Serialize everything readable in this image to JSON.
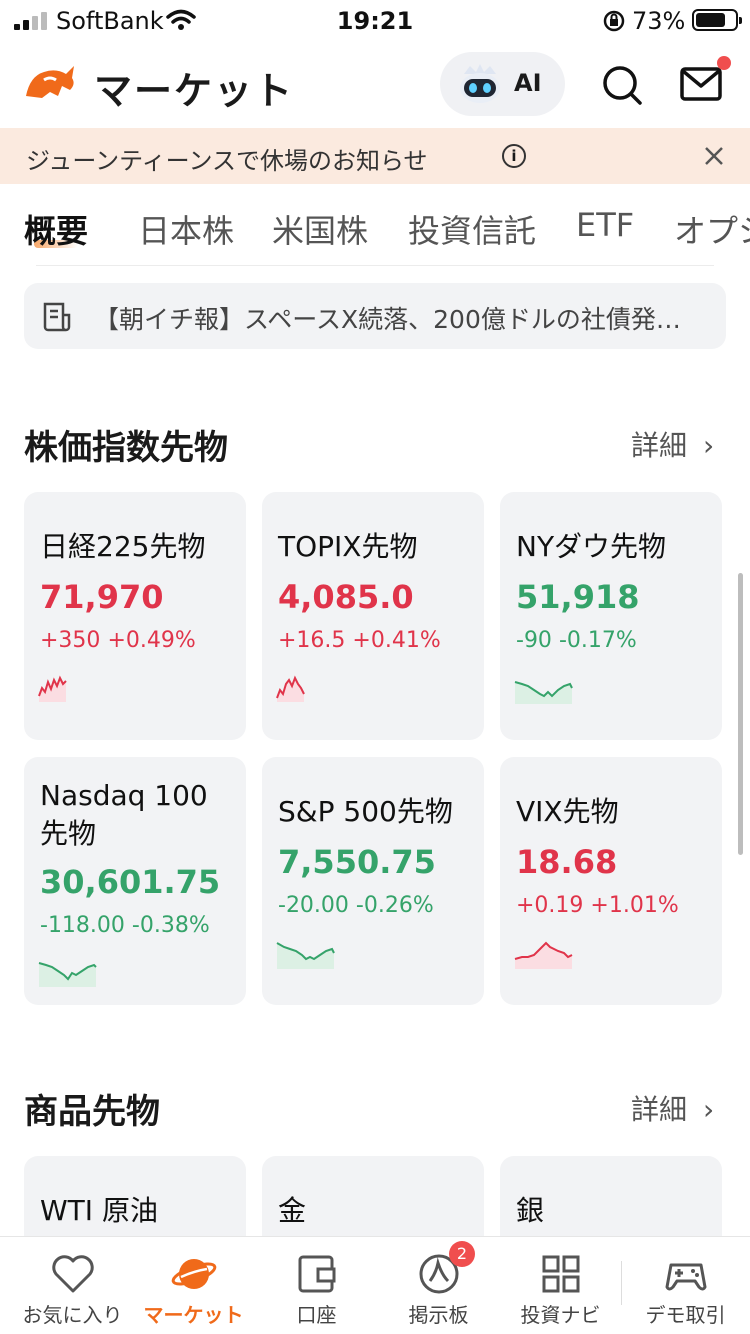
{
  "status_bar": {
    "carrier": "SoftBank",
    "time": "19:21",
    "battery_percent": "73%"
  },
  "header": {
    "title": "マーケット",
    "ai_label": "AI"
  },
  "notice": {
    "text": "ジューンティーンスで休場のお知らせ",
    "info_glyph": "i"
  },
  "tabs": [
    "概要",
    "日本株",
    "米国株",
    "投資信託",
    "ETF",
    "オプシ"
  ],
  "news": {
    "text": "【朝イチ報】スペースX続落、200億ドルの社債発…"
  },
  "index_futures": {
    "title": "株価指数先物",
    "more_label": "詳細",
    "cards": [
      {
        "name": "日経225先物",
        "price": "71,970",
        "change": "+350",
        "change_pct": "+0.49%",
        "direction": "up"
      },
      {
        "name": "TOPIX先物",
        "price": "4,085.0",
        "change": "+16.5",
        "change_pct": "+0.41%",
        "direction": "up"
      },
      {
        "name": "NYダウ先物",
        "price": "51,918",
        "change": "-90",
        "change_pct": "-0.17%",
        "direction": "down"
      },
      {
        "name": "Nasdaq 100 先物",
        "price": "30,601.75",
        "change": "-118.00",
        "change_pct": "-0.38%",
        "direction": "down"
      },
      {
        "name": "S&P 500先物",
        "price": "7,550.75",
        "change": "-20.00",
        "change_pct": "-0.26%",
        "direction": "down"
      },
      {
        "name": "VIX先物",
        "price": "18.68",
        "change": "+0.19",
        "change_pct": "+1.01%",
        "direction": "up"
      }
    ]
  },
  "commodity_futures": {
    "title": "商品先物",
    "more_label": "詳細",
    "cards": [
      {
        "name": "WTI 原油"
      },
      {
        "name": "金"
      },
      {
        "name": "銀"
      }
    ]
  },
  "bottom_nav": {
    "items": [
      {
        "label": "お気に入り",
        "icon": "heart-icon"
      },
      {
        "label": "マーケット",
        "icon": "planet-icon",
        "active": true
      },
      {
        "label": "口座",
        "icon": "wallet-icon"
      },
      {
        "label": "掲示板",
        "icon": "board-icon",
        "badge": "2"
      },
      {
        "label": "投資ナビ",
        "icon": "grid-icon"
      },
      {
        "label": "デモ取引",
        "icon": "gamepad-icon"
      }
    ]
  },
  "colors": {
    "up": "#e0344a",
    "down": "#35a36a",
    "accent": "#f06a1a",
    "notice_bg": "#fbeadf"
  }
}
